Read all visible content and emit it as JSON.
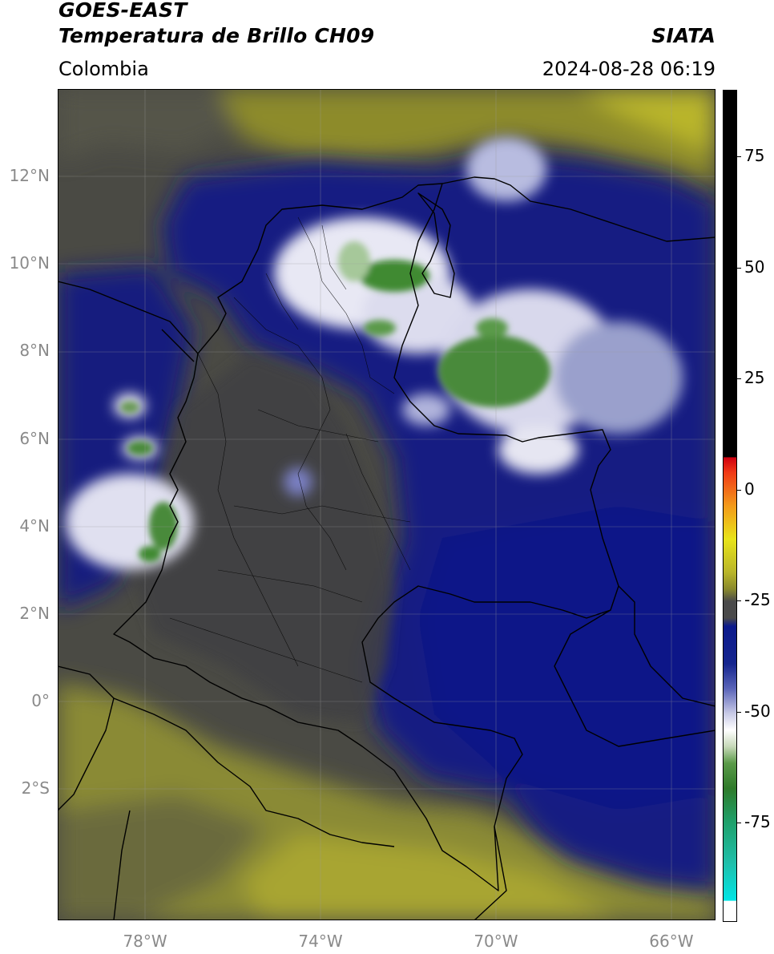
{
  "header": {
    "title_line1": "GOES-EAST",
    "title_line2": "Temperatura de Brillo CH09",
    "region": "Colombia",
    "agency": "SIATA",
    "datetime": "2024-08-28 06:19"
  },
  "map": {
    "lon_range": [
      -80,
      -65
    ],
    "lat_range": [
      -5,
      14
    ],
    "lat_ticks": [
      {
        "value": 12,
        "label": "12°N"
      },
      {
        "value": 10,
        "label": "10°N"
      },
      {
        "value": 8,
        "label": "8°N"
      },
      {
        "value": 6,
        "label": "6°N"
      },
      {
        "value": 4,
        "label": "4°N"
      },
      {
        "value": 2,
        "label": "2°N"
      },
      {
        "value": 0,
        "label": "0°"
      },
      {
        "value": -2,
        "label": "2°S"
      }
    ],
    "lon_ticks": [
      {
        "value": -78,
        "label": "78°W"
      },
      {
        "value": -74,
        "label": "74°W"
      },
      {
        "value": -70,
        "label": "70°W"
      },
      {
        "value": -66,
        "label": "66°W"
      }
    ],
    "grid": true
  },
  "colorbar": {
    "range": [
      -97,
      90
    ],
    "ticks": [
      {
        "value": 75,
        "label": "75"
      },
      {
        "value": 50,
        "label": "50"
      },
      {
        "value": 25,
        "label": "25"
      },
      {
        "value": 0,
        "label": "0"
      },
      {
        "value": -25,
        "label": "-25"
      },
      {
        "value": -50,
        "label": "-50"
      },
      {
        "value": -75,
        "label": "-75"
      }
    ],
    "colors": {
      "black": "#000000",
      "red": "#e8201a",
      "orange": "#f39a1a",
      "yellow": "#e8e41a",
      "olive": "#9c9a2a",
      "gray": "#4a4a4a",
      "navy": "#0c1a8c",
      "white": "#ffffff",
      "green": "#2f8a2a",
      "teal": "#1fbfaa",
      "cyan": "#00e5e5"
    }
  }
}
